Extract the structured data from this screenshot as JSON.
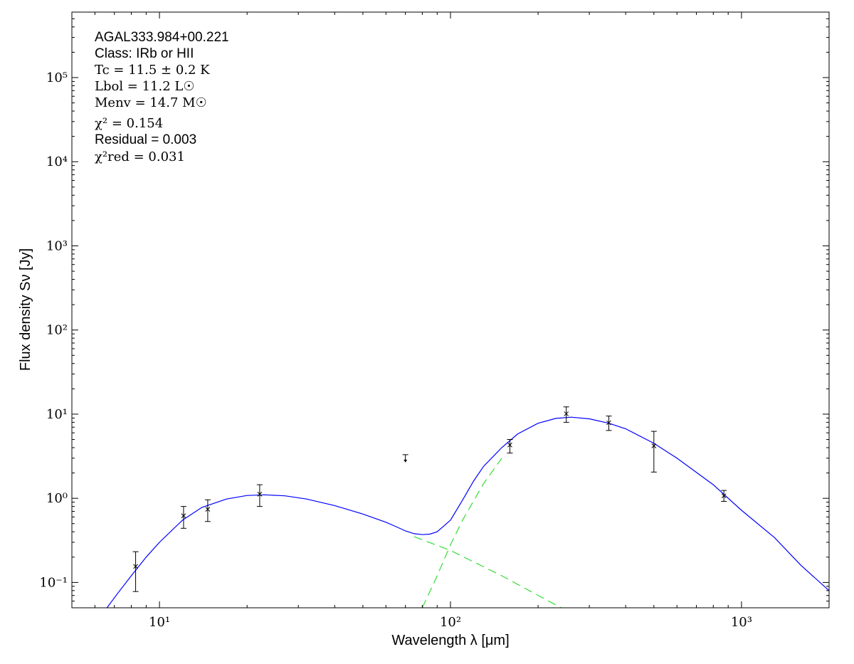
{
  "chart_data": {
    "type": "scatter",
    "xscale": "log",
    "yscale": "log",
    "xlim": [
      5,
      2000
    ],
    "ylim": [
      0.05,
      600000
    ],
    "xlabel": "Wavelength λ [μm]",
    "ylabel": "Flux density Sν [Jy]",
    "x_ticks": [
      10,
      100,
      1000
    ],
    "x_tick_labels": [
      "10¹",
      "10²",
      "10³"
    ],
    "y_ticks": [
      0.1,
      1,
      10,
      100,
      1000,
      10000,
      100000
    ],
    "y_tick_labels": [
      "10⁻¹",
      "10⁰",
      "10¹",
      "10²",
      "10³",
      "10⁴",
      "10⁵"
    ],
    "annotations": [
      "AGAL333.984+00.221",
      "Class: IRb or HII",
      "Tc = 11.5 ± 0.2 K",
      "Lbol = 11.2 L☉",
      "Menv = 14.7 M☉",
      "χ² = 0.154",
      "Residual = 0.003",
      "χ²red = 0.031"
    ],
    "points": [
      {
        "x": 8.28,
        "y": 0.155,
        "err_lo": 0.078,
        "err_hi": 0.232
      },
      {
        "x": 12.1,
        "y": 0.62,
        "err_lo": 0.44,
        "err_hi": 0.8
      },
      {
        "x": 14.65,
        "y": 0.74,
        "err_lo": 0.53,
        "err_hi": 0.96
      },
      {
        "x": 22.1,
        "y": 1.12,
        "err_lo": 0.8,
        "err_hi": 1.45
      },
      {
        "x": 160,
        "y": 4.3,
        "err_lo": 3.45,
        "err_hi": 5.0
      },
      {
        "x": 250,
        "y": 10.1,
        "err_lo": 8.0,
        "err_hi": 12.2
      },
      {
        "x": 350,
        "y": 7.9,
        "err_lo": 6.4,
        "err_hi": 9.5
      },
      {
        "x": 500,
        "y": 4.2,
        "err_lo": 2.05,
        "err_hi": 6.25
      },
      {
        "x": 870,
        "y": 1.07,
        "err_lo": 0.92,
        "err_hi": 1.24
      }
    ],
    "upper_limits": [
      {
        "x": 70,
        "y": 3.3
      }
    ],
    "series": [
      {
        "style": "solid",
        "color": "#0000ff",
        "x": [
          6.6,
          7.2,
          8,
          9,
          10,
          12,
          14,
          17,
          20,
          23,
          27,
          32,
          40,
          50,
          60,
          65,
          70,
          75,
          80,
          85,
          90,
          100,
          110,
          120,
          130,
          150,
          170,
          200,
          230,
          260,
          300,
          350,
          400,
          500,
          600,
          800,
          1000,
          1300,
          1600,
          2000
        ],
        "y": [
          0.05,
          0.075,
          0.12,
          0.2,
          0.3,
          0.55,
          0.78,
          0.98,
          1.08,
          1.1,
          1.07,
          0.98,
          0.82,
          0.65,
          0.52,
          0.46,
          0.41,
          0.38,
          0.37,
          0.375,
          0.4,
          0.55,
          0.95,
          1.6,
          2.4,
          4.0,
          5.8,
          7.8,
          8.9,
          9.2,
          8.8,
          7.8,
          6.7,
          4.5,
          3.0,
          1.45,
          0.72,
          0.34,
          0.16,
          0.08
        ]
      },
      {
        "style": "dashed",
        "color": "#33dd33",
        "x": [
          75,
          100,
          150,
          240
        ],
        "y": [
          0.35,
          0.24,
          0.12,
          0.05
        ]
      },
      {
        "style": "dashed",
        "color": "#33dd33",
        "x": [
          80,
          90,
          100,
          110,
          130,
          150
        ],
        "y": [
          0.05,
          0.12,
          0.28,
          0.55,
          1.5,
          3.0
        ]
      }
    ]
  }
}
